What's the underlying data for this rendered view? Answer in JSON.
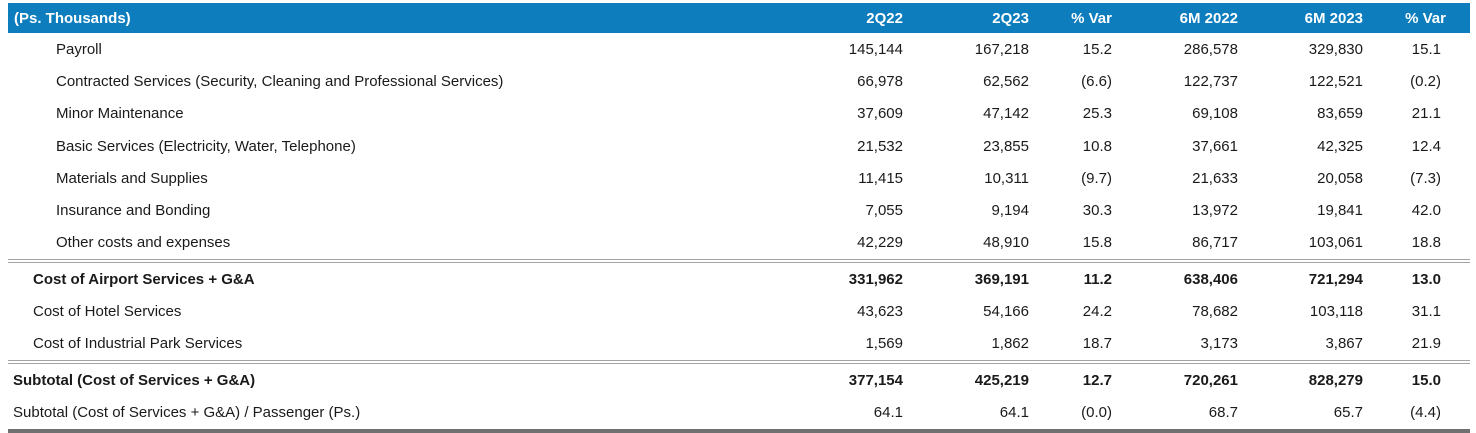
{
  "table": {
    "unit_label": "(Ps. Thousands)",
    "columns": [
      "2Q22",
      "2Q23",
      "% Var",
      "6M 2022",
      "6M 2023",
      "% Var"
    ],
    "rows": [
      {
        "label": "Payroll",
        "values": [
          "145,144",
          "167,218",
          "15.2",
          "286,578",
          "329,830",
          "15.1"
        ],
        "indent": 2,
        "bold": false,
        "separator_above": false
      },
      {
        "label": "Contracted Services (Security, Cleaning and Professional Services)",
        "values": [
          "66,978",
          "62,562",
          "(6.6)",
          "122,737",
          "122,521",
          "(0.2)"
        ],
        "indent": 2,
        "bold": false,
        "separator_above": false
      },
      {
        "label": "Minor Maintenance",
        "values": [
          "37,609",
          "47,142",
          "25.3",
          "69,108",
          "83,659",
          "21.1"
        ],
        "indent": 2,
        "bold": false,
        "separator_above": false
      },
      {
        "label": "Basic Services (Electricity, Water, Telephone)",
        "values": [
          "21,532",
          "23,855",
          "10.8",
          "37,661",
          "42,325",
          "12.4"
        ],
        "indent": 2,
        "bold": false,
        "separator_above": false
      },
      {
        "label": "Materials and Supplies",
        "values": [
          "11,415",
          "10,311",
          "(9.7)",
          "21,633",
          "20,058",
          "(7.3)"
        ],
        "indent": 2,
        "bold": false,
        "separator_above": false
      },
      {
        "label": "Insurance and Bonding",
        "values": [
          "7,055",
          "9,194",
          "30.3",
          "13,972",
          "19,841",
          "42.0"
        ],
        "indent": 2,
        "bold": false,
        "separator_above": false
      },
      {
        "label": "Other costs and expenses",
        "values": [
          "42,229",
          "48,910",
          "15.8",
          "86,717",
          "103,061",
          "18.8"
        ],
        "indent": 2,
        "bold": false,
        "separator_above": false
      },
      {
        "label": "Cost of Airport Services + G&A",
        "values": [
          "331,962",
          "369,191",
          "11.2",
          "638,406",
          "721,294",
          "13.0"
        ],
        "indent": 1,
        "bold": true,
        "separator_above": true
      },
      {
        "label": "Cost of Hotel Services",
        "values": [
          "43,623",
          "54,166",
          "24.2",
          "78,682",
          "103,118",
          "31.1"
        ],
        "indent": 1,
        "bold": false,
        "separator_above": false
      },
      {
        "label": "Cost of Industrial Park Services",
        "values": [
          "1,569",
          "1,862",
          "18.7",
          "3,173",
          "3,867",
          "21.9"
        ],
        "indent": 1,
        "bold": false,
        "separator_above": false
      },
      {
        "label": "Subtotal (Cost of Services + G&A)",
        "values": [
          "377,154",
          "425,219",
          "12.7",
          "720,261",
          "828,279",
          "15.0"
        ],
        "indent": 0,
        "bold": true,
        "separator_above": true
      },
      {
        "label": "Subtotal (Cost of Services + G&A) / Passenger (Ps.)",
        "values": [
          "64.1",
          "64.1",
          "(0.0)",
          "68.7",
          "65.7",
          "(4.4)"
        ],
        "indent": 0,
        "bold": false,
        "separator_above": false
      }
    ]
  },
  "colors": {
    "header_bg": "#0d7dbe",
    "header_text": "#ffffff",
    "body_text": "#1a1a1a",
    "separator": "#a3a3a3",
    "bottom_bar": "#707070"
  }
}
